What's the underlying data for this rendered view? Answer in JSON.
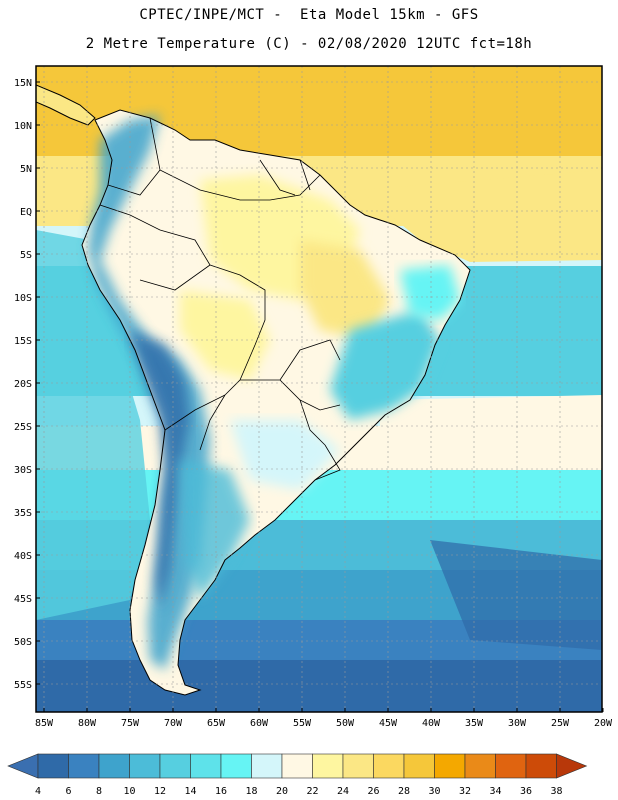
{
  "header": {
    "line1": "CPTEC/INPE/MCT -  Eta Model 15km - GFS",
    "line2": "2 Metre Temperature (C) - 02/08/2020 12UTC fct=18h"
  },
  "axes": {
    "lat_labels": [
      "15N",
      "10N",
      "5N",
      "EQ",
      "5S",
      "10S",
      "15S",
      "20S",
      "25S",
      "30S",
      "35S",
      "40S",
      "45S",
      "50S",
      "55S"
    ],
    "lon_labels": [
      "85W",
      "80W",
      "75W",
      "70W",
      "65W",
      "60W",
      "55W",
      "50W",
      "45W",
      "40W",
      "35W",
      "30W",
      "25W",
      "20W"
    ]
  },
  "colorbar": {
    "colors": [
      "#3a6fb0",
      "#2f6aa8",
      "#3a82c0",
      "#3ea3cc",
      "#4cbcd8",
      "#56cfe0",
      "#5ee2ea",
      "#66f4f4",
      "#d4f6fa",
      "#fff8e4",
      "#fef6a0",
      "#fbe785",
      "#fbd860",
      "#f5c73a",
      "#f4a800",
      "#ea8a18",
      "#e06410",
      "#cd4b08",
      "#b8380a"
    ],
    "labels": [
      "4",
      "6",
      "8",
      "10",
      "12",
      "14",
      "16",
      "18",
      "20",
      "22",
      "24",
      "26",
      "28",
      "30",
      "32",
      "34",
      "36",
      "38"
    ]
  }
}
